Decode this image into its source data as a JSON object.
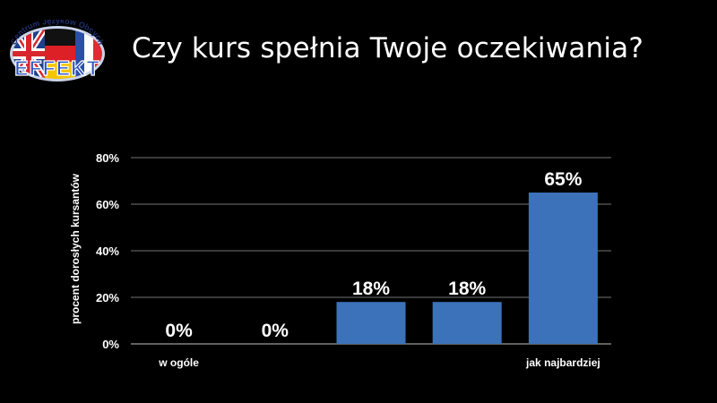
{
  "slide": {
    "title": "Czy kurs spełnia Twoje oczekiwania?"
  },
  "logo": {
    "top_text": "Centrum Języków Obcych",
    "name": "EFFEKT",
    "colors": {
      "uk_blue": "#1d3f8c",
      "uk_red": "#d7262d",
      "de_black": "#111111",
      "de_red": "#dd1f26",
      "de_gold": "#f6c500",
      "fr_blue": "#2a4fa8",
      "fr_red": "#e02b32",
      "ring": "#c9d4ea",
      "name_fill": "#2a4fbf"
    }
  },
  "colors": {
    "background": "#000000",
    "bar": "#3c72b9",
    "grid": "#9a9a9a",
    "text": "#ffffff"
  },
  "chart_data": {
    "type": "bar",
    "categories": [
      "w ogóle",
      "",
      "",
      "",
      "jak najbardziej"
    ],
    "values": [
      0,
      0,
      18,
      18,
      65
    ],
    "data_labels": [
      "0%",
      "0%",
      "18%",
      "18%",
      "65%"
    ],
    "ylabel": "procent dorosłych kursantów",
    "ylim": [
      0,
      80
    ],
    "yticks": [
      0,
      20,
      40,
      60,
      80
    ],
    "ytick_labels": [
      "0%",
      "20%",
      "40%",
      "60%",
      "80%"
    ],
    "grid": true
  }
}
